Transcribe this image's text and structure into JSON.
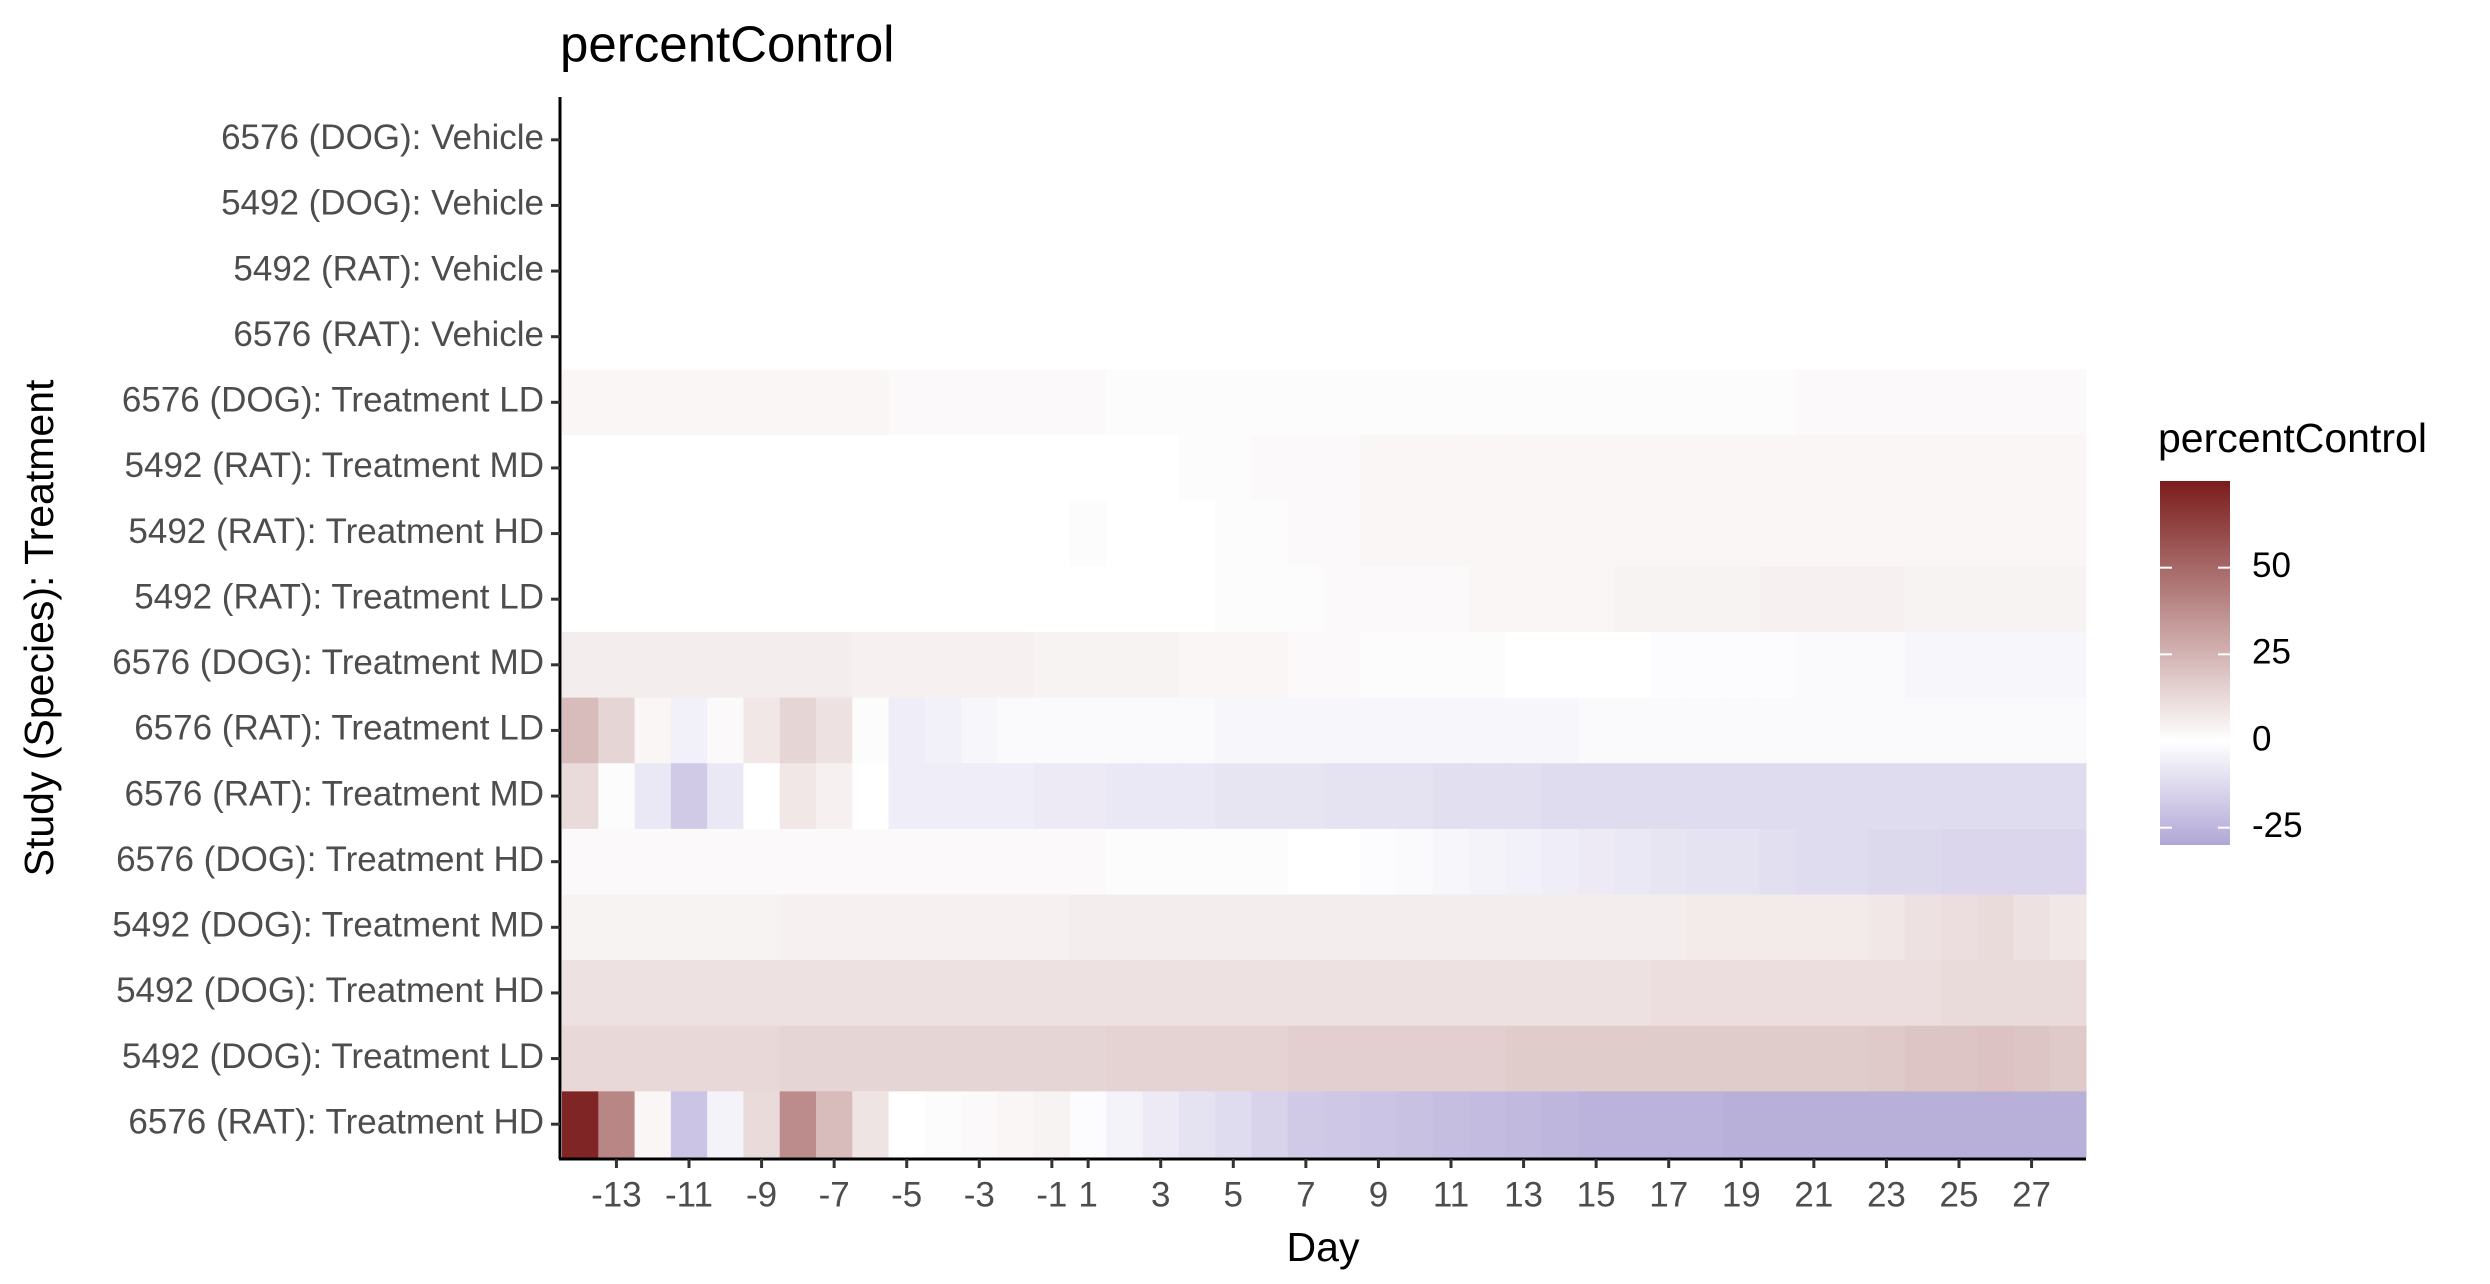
{
  "chart_data": {
    "type": "heatmap",
    "title": "percentControl",
    "xlabel": "Day",
    "ylabel": "Study (Species): Treatment",
    "categories": [
      null,
      "-13",
      null,
      "-11",
      null,
      "-9",
      null,
      "-7",
      null,
      "-5",
      null,
      "-3",
      null,
      "-1",
      "1",
      null,
      "3",
      null,
      "5",
      null,
      "7",
      null,
      "9",
      null,
      "11",
      null,
      "13",
      null,
      "15",
      null,
      "17",
      null,
      "19",
      null,
      "21",
      null,
      "23",
      null,
      "25",
      null,
      "27",
      null
    ],
    "rows": [
      "6576 (DOG): Vehicle",
      "5492 (DOG): Vehicle",
      "5492 (RAT): Vehicle",
      "6576 (RAT): Vehicle",
      "6576 (DOG): Treatment LD",
      "5492 (RAT): Treatment MD",
      "5492 (RAT): Treatment HD",
      "5492 (RAT): Treatment LD",
      "6576 (DOG): Treatment MD",
      "6576 (RAT): Treatment LD",
      "6576 (RAT): Treatment MD",
      "6576 (DOG): Treatment HD",
      "5492 (DOG): Treatment MD",
      "5492 (DOG): Treatment HD",
      "5492 (DOG): Treatment LD",
      "6576 (RAT): Treatment HD"
    ],
    "values": [
      [
        null,
        null,
        null,
        null,
        null,
        null,
        null,
        null,
        null,
        null,
        null,
        null,
        null,
        null,
        null,
        null,
        null,
        null,
        null,
        null,
        null,
        null,
        null,
        null,
        null,
        null,
        null,
        null,
        null,
        null,
        null,
        null,
        null,
        null,
        null,
        null,
        null,
        null,
        null,
        null,
        null,
        null
      ],
      [
        null,
        null,
        null,
        null,
        null,
        null,
        null,
        null,
        null,
        null,
        null,
        null,
        null,
        null,
        null,
        null,
        null,
        null,
        null,
        null,
        null,
        null,
        null,
        null,
        null,
        null,
        null,
        null,
        null,
        null,
        null,
        null,
        null,
        null,
        null,
        null,
        null,
        null,
        null,
        null,
        null,
        null
      ],
      [
        null,
        null,
        null,
        null,
        null,
        null,
        null,
        null,
        null,
        null,
        null,
        null,
        null,
        null,
        null,
        null,
        null,
        null,
        null,
        null,
        null,
        null,
        null,
        null,
        null,
        null,
        null,
        null,
        null,
        null,
        null,
        null,
        null,
        null,
        null,
        null,
        null,
        null,
        null,
        null,
        null,
        null
      ],
      [
        null,
        null,
        null,
        null,
        null,
        null,
        null,
        null,
        null,
        null,
        null,
        null,
        null,
        null,
        null,
        null,
        null,
        null,
        null,
        null,
        null,
        null,
        null,
        null,
        null,
        null,
        null,
        null,
        null,
        null,
        null,
        null,
        null,
        null,
        null,
        null,
        null,
        null,
        null,
        null,
        null,
        null
      ],
      [
        3,
        3,
        3,
        3,
        3,
        3,
        3,
        3,
        3,
        2,
        2,
        2,
        2,
        2,
        2,
        1,
        1,
        1,
        1,
        1,
        1,
        1,
        1,
        1,
        1,
        1,
        1,
        1,
        1,
        1,
        1,
        1,
        1,
        1,
        2,
        2,
        2,
        2,
        2,
        2,
        2,
        2
      ],
      [
        0,
        0,
        0,
        0,
        0,
        0,
        0,
        0,
        0,
        0,
        0,
        0,
        0,
        0,
        0,
        0,
        0,
        1,
        1,
        2,
        2,
        2,
        3,
        3,
        3,
        3,
        3,
        3,
        3,
        3,
        3,
        3,
        3,
        3,
        3,
        3,
        3,
        3,
        3,
        3,
        3,
        3
      ],
      [
        0,
        0,
        0,
        0,
        0,
        0,
        0,
        0,
        0,
        0,
        0,
        0,
        0,
        0,
        1,
        0,
        0,
        0,
        1,
        1,
        2,
        2,
        3,
        3,
        3,
        3,
        3,
        3,
        3,
        3,
        3,
        3,
        3,
        3,
        3,
        3,
        3,
        3,
        3,
        3,
        3,
        3
      ],
      [
        0,
        0,
        0,
        0,
        0,
        0,
        0,
        0,
        0,
        0,
        0,
        0,
        0,
        0,
        0,
        0,
        0,
        0,
        1,
        1,
        1,
        2,
        2,
        2,
        2,
        3,
        3,
        3,
        3,
        4,
        4,
        4,
        4,
        5,
        5,
        5,
        5,
        4,
        4,
        4,
        4,
        4
      ],
      [
        6,
        6,
        6,
        6,
        6,
        6,
        6,
        6,
        5,
        5,
        5,
        5,
        5,
        4,
        4,
        4,
        4,
        3,
        3,
        3,
        2,
        2,
        1,
        1,
        1,
        1,
        0,
        0,
        0,
        0,
        -1,
        -1,
        -1,
        -1,
        -2,
        -2,
        -2,
        -3,
        -3,
        -3,
        -3,
        -3
      ],
      [
        22,
        14,
        3,
        -5,
        2,
        8,
        14,
        10,
        1,
        -6,
        -5,
        -3,
        -2,
        -2,
        -2,
        -2,
        -2,
        -2,
        -3,
        -3,
        -3,
        -3,
        -3,
        -3,
        -3,
        -3,
        -3,
        -3,
        -2,
        -2,
        -2,
        -2,
        -2,
        -2,
        -2,
        -2,
        -2,
        -2,
        -2,
        -2,
        -2,
        -2
      ],
      [
        12,
        1,
        -8,
        -18,
        -8,
        0,
        8,
        5,
        0,
        -6,
        -6,
        -6,
        -6,
        -7,
        -7,
        -8,
        -8,
        -8,
        -9,
        -9,
        -9,
        -10,
        -10,
        -10,
        -11,
        -11,
        -11,
        -12,
        -12,
        -12,
        -12,
        -12,
        -12,
        -12,
        -12,
        -12,
        -12,
        -12,
        -12,
        -12,
        -12,
        -12
      ],
      [
        2,
        2,
        2,
        2,
        2,
        2,
        2,
        2,
        2,
        2,
        2,
        2,
        2,
        2,
        2,
        1,
        1,
        1,
        1,
        1,
        0,
        0,
        -1,
        -2,
        -3,
        -4,
        -5,
        -6,
        -7,
        -8,
        -9,
        -10,
        -10,
        -11,
        -12,
        -12,
        -13,
        -13,
        -14,
        -14,
        -14,
        -14
      ],
      [
        4,
        4,
        4,
        4,
        4,
        4,
        5,
        5,
        5,
        5,
        5,
        5,
        5,
        5,
        6,
        6,
        6,
        6,
        6,
        6,
        6,
        6,
        6,
        6,
        6,
        6,
        6,
        6,
        6,
        6,
        6,
        7,
        7,
        7,
        7,
        7,
        8,
        10,
        11,
        12,
        10,
        8
      ],
      [
        10,
        10,
        10,
        10,
        10,
        10,
        10,
        10,
        10,
        10,
        10,
        10,
        10,
        10,
        10,
        10,
        10,
        10,
        10,
        10,
        10,
        10,
        10,
        10,
        10,
        10,
        10,
        10,
        10,
        10,
        11,
        11,
        11,
        11,
        11,
        11,
        11,
        11,
        12,
        12,
        12,
        12
      ],
      [
        13,
        13,
        13,
        13,
        13,
        13,
        14,
        14,
        14,
        14,
        14,
        14,
        14,
        14,
        14,
        15,
        15,
        15,
        15,
        15,
        16,
        16,
        16,
        16,
        16,
        16,
        17,
        17,
        17,
        17,
        17,
        17,
        17,
        17,
        17,
        17,
        18,
        19,
        19,
        20,
        19,
        18
      ],
      [
        72,
        40,
        3,
        -20,
        -4,
        12,
        38,
        22,
        9,
        0,
        1,
        2,
        3,
        4,
        -1,
        -4,
        -7,
        -10,
        -12,
        -15,
        -18,
        -19,
        -20,
        -21,
        -22,
        -23,
        -24,
        -25,
        -26,
        -26,
        -26,
        -26,
        -27,
        -27,
        -27,
        -27,
        -27,
        -27,
        -27,
        -27,
        -27,
        -27
      ]
    ],
    "legend": {
      "title": "percentControl",
      "zlim": [
        -30,
        75
      ],
      "ticks": [
        -25,
        0,
        25,
        50
      ],
      "low": "#b1a7d6",
      "mid": "#ffffff",
      "high": "#7b1c1c"
    }
  }
}
